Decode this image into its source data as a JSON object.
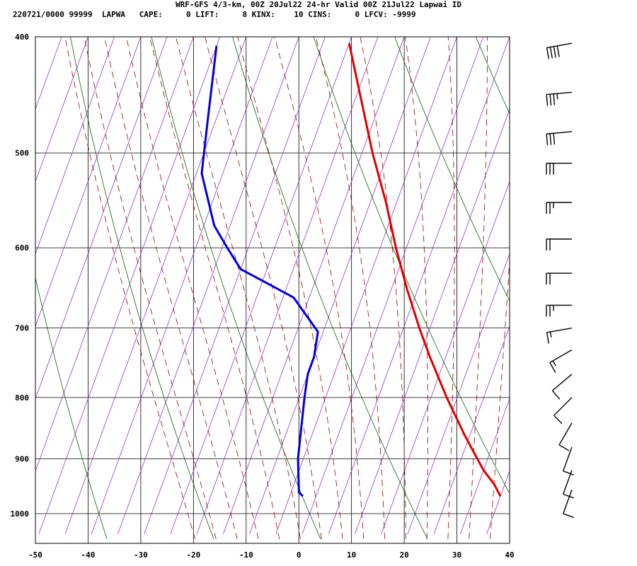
{
  "header": {
    "line1": "WRF-GFS 4/3-km, 00Z 20Jul22 24-hr Valid 00Z 21Jul22 Lapwai ID",
    "line2": "220721/0000 99999  LAPWA   CAPE:     0 LIFT:     8 KINX:    10 CINS:     0 LFCV: -9999"
  },
  "chart_data": {
    "type": "line",
    "title": "WRF-GFS 4/3-km, 00Z 20Jul22 24-hr Valid 00Z 21Jul22 Lapwai ID",
    "xlabel": "",
    "ylabel": "",
    "x_axis": {
      "range": [
        -50,
        40
      ],
      "ticks": [
        -50,
        -40,
        -30,
        -20,
        -10,
        0,
        10,
        20,
        30,
        40
      ],
      "tick_labels": [
        "-50",
        "-40",
        "-30",
        "-20",
        "-10",
        "0",
        "10",
        "20",
        "30",
        "40"
      ]
    },
    "y_axis": {
      "scale": "log-pressure",
      "range": [
        1040,
        400
      ],
      "ticks": [
        400,
        500,
        600,
        700,
        800,
        900,
        1000
      ],
      "tick_labels": [
        "400",
        "500",
        "600",
        "700",
        "800",
        "900",
        "1000"
      ]
    },
    "grid": true,
    "skew": "skew-T log-P",
    "colors": {
      "temperature": "#dd0000",
      "dewpoint": "#0000dd",
      "isotherm_skewed": "#9933cc",
      "dry_adiabat": "#006600",
      "moist_adiabat": "#990000",
      "wind_barb": "#000000"
    },
    "series": [
      {
        "key": "temperature",
        "points": [
          {
            "p": 967,
            "t": 35
          },
          {
            "p": 945,
            "t": 33
          },
          {
            "p": 920,
            "t": 30
          },
          {
            "p": 860,
            "t": 24
          },
          {
            "p": 800,
            "t": 18
          },
          {
            "p": 740,
            "t": 12
          },
          {
            "p": 700,
            "t": 8
          },
          {
            "p": 650,
            "t": 3
          },
          {
            "p": 600,
            "t": -2
          },
          {
            "p": 550,
            "t": -7
          },
          {
            "p": 500,
            "t": -13
          },
          {
            "p": 450,
            "t": -19
          },
          {
            "p": 405,
            "t": -25
          }
        ]
      },
      {
        "key": "dewpoint",
        "points": [
          {
            "p": 967,
            "t": -2.5
          },
          {
            "p": 960,
            "t": -3.5
          },
          {
            "p": 900,
            "t": -6
          },
          {
            "p": 800,
            "t": -9
          },
          {
            "p": 765,
            "t": -10
          },
          {
            "p": 740,
            "t": -10
          },
          {
            "p": 705,
            "t": -11
          },
          {
            "p": 660,
            "t": -18
          },
          {
            "p": 625,
            "t": -30
          },
          {
            "p": 600,
            "t": -34
          },
          {
            "p": 575,
            "t": -38
          },
          {
            "p": 520,
            "t": -44
          },
          {
            "p": 470,
            "t": -46.5
          },
          {
            "p": 407,
            "t": -50
          }
        ]
      }
    ],
    "wind_barbs": [
      {
        "p": 405,
        "dir": 260,
        "speed": 40
      },
      {
        "p": 445,
        "dir": 265,
        "speed": 35
      },
      {
        "p": 480,
        "dir": 265,
        "speed": 30
      },
      {
        "p": 510,
        "dir": 270,
        "speed": 30
      },
      {
        "p": 550,
        "dir": 270,
        "speed": 25
      },
      {
        "p": 590,
        "dir": 270,
        "speed": 20
      },
      {
        "p": 630,
        "dir": 270,
        "speed": 20
      },
      {
        "p": 670,
        "dir": 270,
        "speed": 25
      },
      {
        "p": 700,
        "dir": 260,
        "speed": 15
      },
      {
        "p": 730,
        "dir": 240,
        "speed": 15
      },
      {
        "p": 765,
        "dir": 230,
        "speed": 10
      },
      {
        "p": 800,
        "dir": 225,
        "speed": 10
      },
      {
        "p": 840,
        "dir": 210,
        "speed": 10
      },
      {
        "p": 880,
        "dir": 200,
        "speed": 10
      },
      {
        "p": 920,
        "dir": 200,
        "speed": 10
      },
      {
        "p": 955,
        "dir": 200,
        "speed": 10
      }
    ]
  }
}
